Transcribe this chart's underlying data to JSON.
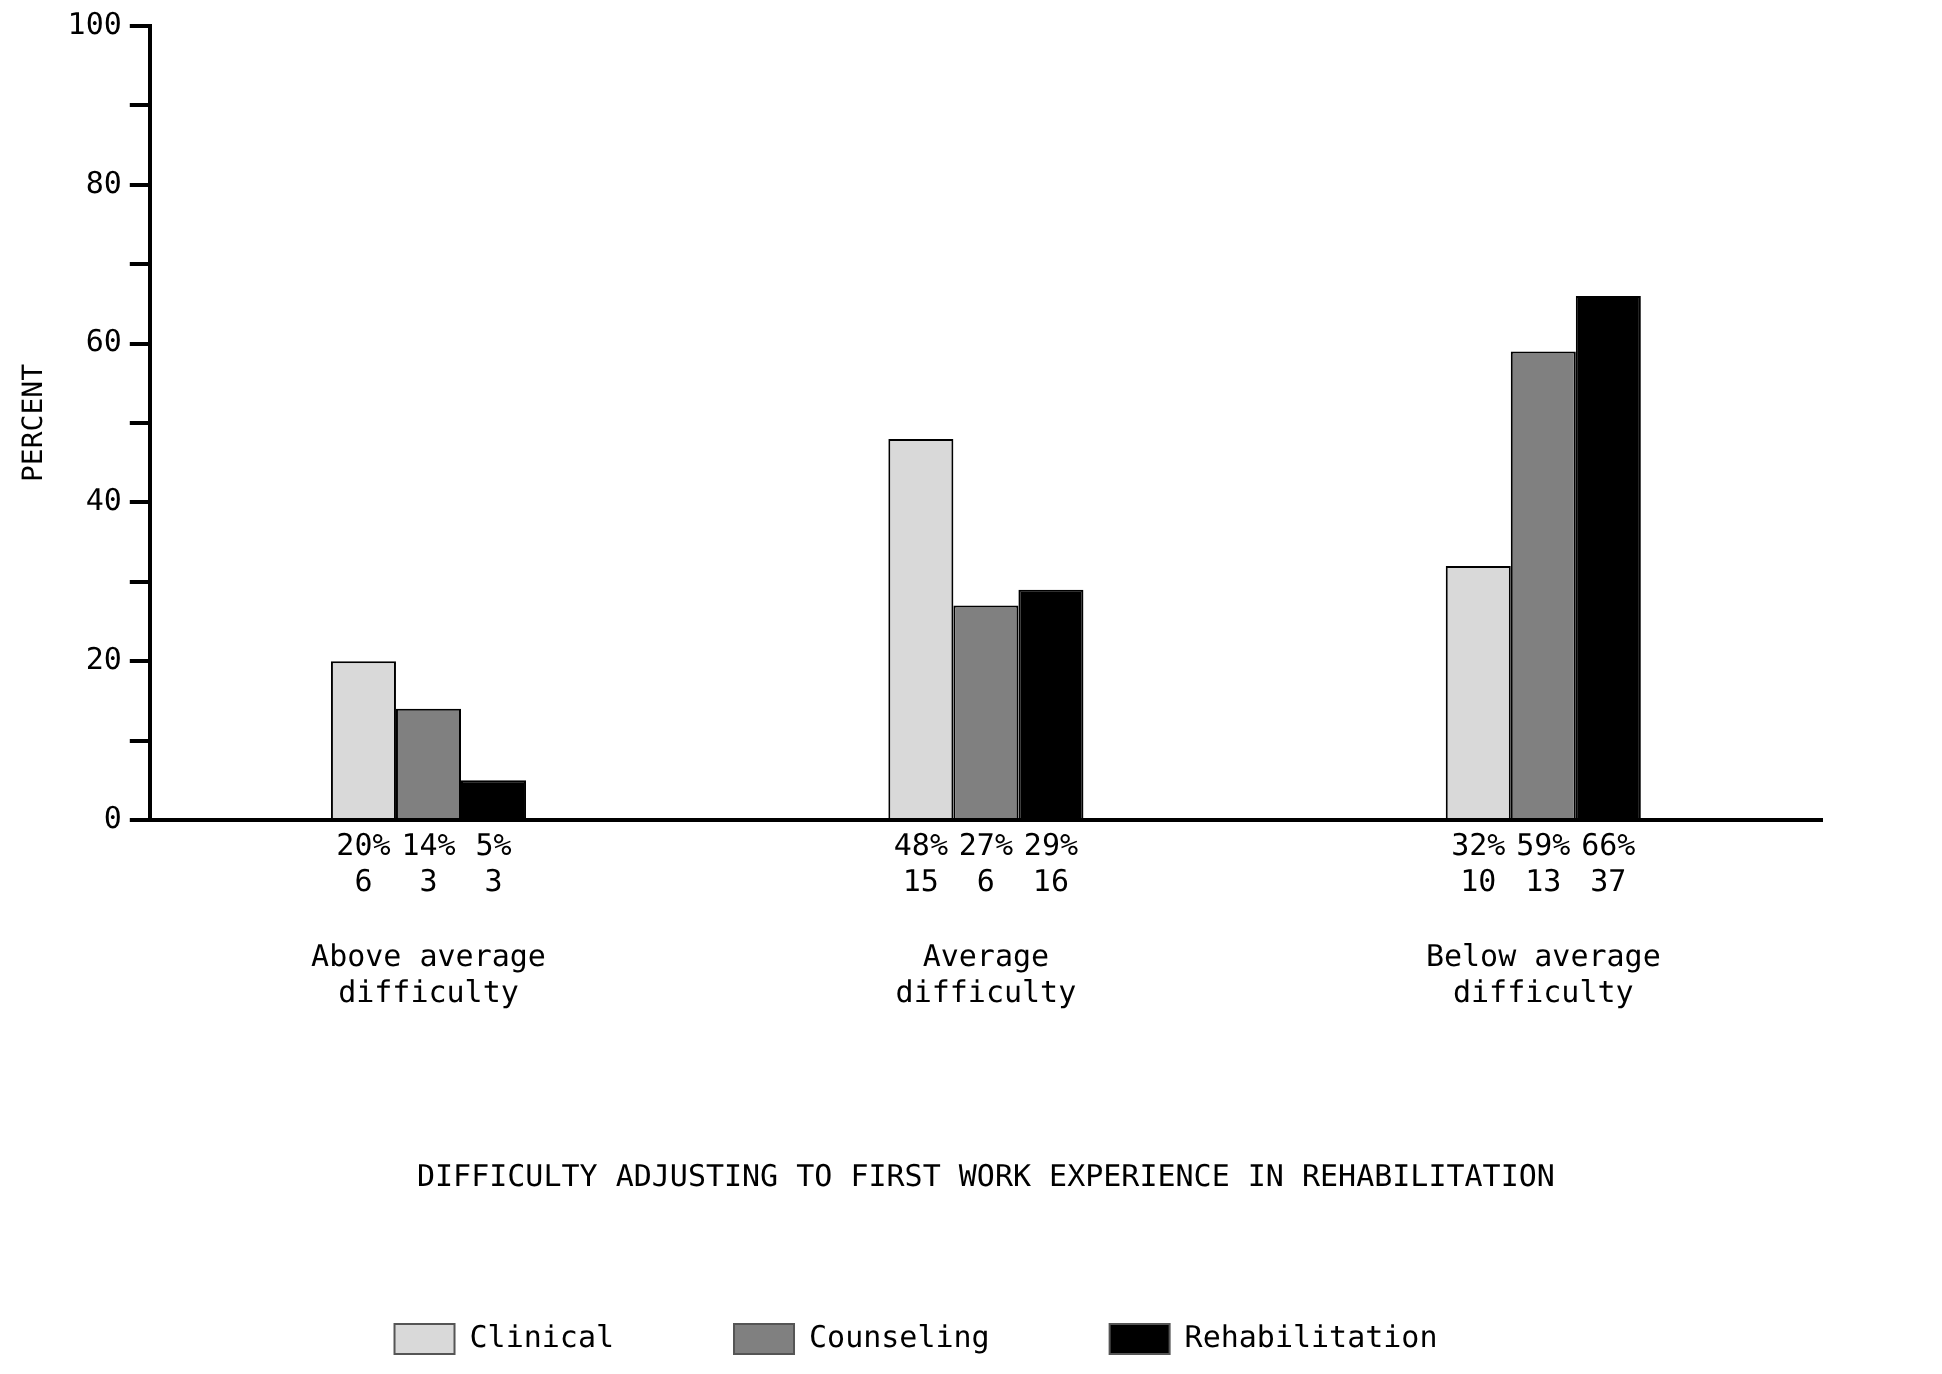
{
  "chart_data": {
    "type": "bar",
    "xlabel": "DIFFICULTY ADJUSTING TO FIRST WORK EXPERIENCE IN REHABILITATION",
    "ylabel": "PERCENT",
    "categories": [
      "Above average\ndifficulty",
      "Average\ndifficulty",
      "Below average\ndifficulty"
    ],
    "series": [
      {
        "name": "Clinical",
        "color": "#d9d9d9",
        "values": [
          20,
          48,
          32
        ],
        "value_labels": [
          "20%\n6",
          "48%\n15",
          "32%\n10"
        ]
      },
      {
        "name": "Counseling",
        "color": "#808080",
        "values": [
          14,
          27,
          59
        ],
        "value_labels": [
          "14%\n3",
          "27%\n6",
          "59%\n13"
        ]
      },
      {
        "name": "Rehabilitation",
        "color": "#000000",
        "values": [
          5,
          29,
          66
        ],
        "value_labels": [
          "5%\n3",
          "29%\n16",
          "66%\n37"
        ]
      }
    ],
    "ylim": [
      0,
      100
    ],
    "yticks": [
      0,
      {
        "value": 10,
        "label": null
      },
      20,
      {
        "value": 30,
        "label": null
      },
      40,
      {
        "value": 50,
        "label": null
      },
      60,
      {
        "value": 70,
        "label": null
      },
      80,
      {
        "value": 90,
        "label": null
      },
      100
    ],
    "grid": false,
    "legend": "bottom"
  }
}
